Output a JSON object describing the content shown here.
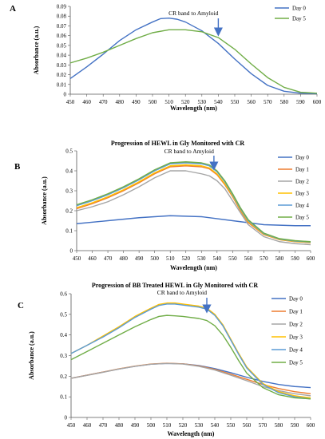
{
  "chart_data": [
    {
      "type": "line",
      "panel_label": "A",
      "title": "",
      "annotation": "CR band to Amyloid",
      "annotation_x": 540,
      "xlabel": "Wavelength (nm)",
      "ylabel": "Absorbance (a.u.)",
      "xlim": [
        450,
        600
      ],
      "ylim": [
        0,
        0.09
      ],
      "x_ticks": [
        450,
        460,
        470,
        480,
        490,
        500,
        510,
        520,
        530,
        540,
        550,
        560,
        570,
        580,
        590,
        600
      ],
      "y_ticks": [
        0,
        0.01,
        0.02,
        0.03,
        0.04,
        0.05,
        0.06,
        0.07,
        0.08,
        0.09
      ],
      "y_tick_labels": [
        "0",
        "0.01",
        "0.02",
        "0.03",
        "0.04",
        "0.05",
        "0.06",
        "0.07",
        "0.08",
        "0.09"
      ],
      "grid": false,
      "legend": "right",
      "series": [
        {
          "name": "Day 0",
          "color": "#4472c4",
          "x": [
            450,
            460,
            470,
            480,
            490,
            500,
            505,
            510,
            515,
            520,
            530,
            540,
            550,
            560,
            570,
            580,
            590,
            600
          ],
          "y": [
            0.016,
            0.028,
            0.041,
            0.055,
            0.066,
            0.074,
            0.0775,
            0.078,
            0.0768,
            0.074,
            0.065,
            0.052,
            0.036,
            0.021,
            0.009,
            0.003,
            0.001,
            0.0005
          ]
        },
        {
          "name": "Day 5",
          "color": "#70ad47",
          "x": [
            450,
            460,
            470,
            480,
            490,
            500,
            510,
            520,
            530,
            540,
            550,
            560,
            570,
            580,
            590,
            600
          ],
          "y": [
            0.032,
            0.037,
            0.043,
            0.05,
            0.057,
            0.063,
            0.066,
            0.066,
            0.064,
            0.058,
            0.046,
            0.031,
            0.017,
            0.007,
            0.002,
            0.001
          ]
        }
      ]
    },
    {
      "type": "line",
      "panel_label": "B",
      "title": "Progression of HEWL in Gly Monitored with CR",
      "annotation": "CR band to Amyloid",
      "annotation_x": 538,
      "xlabel": "Wavelength (nm)",
      "ylabel": "Absorbance (a.u.)",
      "xlim": [
        450,
        600
      ],
      "ylim": [
        0,
        0.5
      ],
      "x_ticks": [
        450,
        460,
        470,
        480,
        490,
        500,
        510,
        520,
        530,
        540,
        550,
        560,
        570,
        580,
        590,
        600
      ],
      "y_ticks": [
        0,
        0.1,
        0.2,
        0.3,
        0.4,
        0.5
      ],
      "y_tick_labels": [
        "0",
        "0.1",
        "0.2",
        "0.3",
        "0.4",
        "0.5"
      ],
      "grid": false,
      "legend": "right",
      "series": [
        {
          "name": "Day 0",
          "color": "#4472c4",
          "x": [
            450,
            470,
            490,
            510,
            530,
            550,
            570,
            590,
            600
          ],
          "y": [
            0.135,
            0.15,
            0.165,
            0.175,
            0.17,
            0.15,
            0.13,
            0.125,
            0.125
          ]
        },
        {
          "name": "Day 1",
          "color": "#ed7d31",
          "x": [
            450,
            460,
            470,
            480,
            490,
            500,
            510,
            520,
            530,
            535,
            540,
            545,
            550,
            555,
            560,
            570,
            580,
            590,
            600
          ],
          "y": [
            0.21,
            0.235,
            0.265,
            0.3,
            0.34,
            0.385,
            0.42,
            0.425,
            0.42,
            0.41,
            0.38,
            0.33,
            0.27,
            0.2,
            0.14,
            0.08,
            0.055,
            0.045,
            0.04
          ]
        },
        {
          "name": "Day 2",
          "color": "#a5a5a5",
          "x": [
            450,
            460,
            470,
            480,
            490,
            500,
            510,
            520,
            530,
            535,
            540,
            545,
            550,
            555,
            560,
            570,
            580,
            590,
            600
          ],
          "y": [
            0.2,
            0.22,
            0.245,
            0.28,
            0.32,
            0.365,
            0.4,
            0.4,
            0.385,
            0.375,
            0.35,
            0.31,
            0.25,
            0.19,
            0.13,
            0.07,
            0.045,
            0.035,
            0.03
          ]
        },
        {
          "name": "Day 3",
          "color": "#ffc000",
          "x": [
            450,
            460,
            470,
            480,
            490,
            500,
            510,
            520,
            530,
            535,
            540,
            545,
            550,
            555,
            560,
            570,
            580,
            590,
            600
          ],
          "y": [
            0.215,
            0.24,
            0.27,
            0.305,
            0.345,
            0.39,
            0.425,
            0.43,
            0.425,
            0.415,
            0.385,
            0.335,
            0.275,
            0.205,
            0.145,
            0.082,
            0.056,
            0.046,
            0.041
          ]
        },
        {
          "name": "Day 4",
          "color": "#5b9bd5",
          "x": [
            450,
            460,
            470,
            480,
            490,
            500,
            510,
            520,
            530,
            535,
            540,
            545,
            550,
            555,
            560,
            570,
            580,
            590,
            600
          ],
          "y": [
            0.225,
            0.25,
            0.28,
            0.315,
            0.355,
            0.4,
            0.435,
            0.44,
            0.435,
            0.425,
            0.395,
            0.345,
            0.28,
            0.21,
            0.15,
            0.085,
            0.058,
            0.048,
            0.043
          ]
        },
        {
          "name": "Day 5",
          "color": "#70ad47",
          "x": [
            450,
            460,
            470,
            480,
            490,
            500,
            510,
            520,
            530,
            535,
            540,
            545,
            550,
            555,
            560,
            570,
            580,
            590,
            600
          ],
          "y": [
            0.23,
            0.255,
            0.285,
            0.32,
            0.36,
            0.405,
            0.44,
            0.445,
            0.44,
            0.43,
            0.4,
            0.35,
            0.285,
            0.215,
            0.155,
            0.088,
            0.06,
            0.05,
            0.045
          ]
        }
      ]
    },
    {
      "type": "line",
      "panel_label": "C",
      "title": "Progression of BB Treated HEWL in Gly Monitored with CR",
      "annotation": "CR band to Amyloid",
      "annotation_x": 535,
      "xlabel": "Wavelength (nm)",
      "ylabel": "Absorbance (a.u.)",
      "xlim": [
        450,
        600
      ],
      "ylim": [
        0,
        0.6
      ],
      "x_ticks": [
        450,
        460,
        470,
        480,
        490,
        500,
        510,
        520,
        530,
        540,
        550,
        560,
        570,
        580,
        590,
        600
      ],
      "y_ticks": [
        0,
        0.1,
        0.2,
        0.3,
        0.4,
        0.5,
        0.6
      ],
      "y_tick_labels": [
        "0",
        "0.1",
        "0.2",
        "0.3",
        "0.4",
        "0.5",
        "0.6"
      ],
      "grid": false,
      "legend": "right",
      "series": [
        {
          "name": "Day 0",
          "color": "#4472c4",
          "x": [
            450,
            460,
            470,
            480,
            490,
            500,
            510,
            520,
            530,
            540,
            550,
            560,
            570,
            580,
            590,
            600
          ],
          "y": [
            0.19,
            0.205,
            0.22,
            0.235,
            0.248,
            0.258,
            0.262,
            0.26,
            0.252,
            0.237,
            0.217,
            0.195,
            0.175,
            0.16,
            0.15,
            0.145
          ]
        },
        {
          "name": "Day 1",
          "color": "#ed7d31",
          "x": [
            450,
            460,
            470,
            480,
            490,
            500,
            510,
            520,
            530,
            540,
            550,
            560,
            570,
            580,
            590,
            600
          ],
          "y": [
            0.19,
            0.205,
            0.22,
            0.236,
            0.249,
            0.259,
            0.263,
            0.26,
            0.25,
            0.233,
            0.21,
            0.185,
            0.16,
            0.14,
            0.125,
            0.115
          ]
        },
        {
          "name": "Day 2",
          "color": "#a5a5a5",
          "x": [
            450,
            460,
            470,
            480,
            490,
            500,
            510,
            520,
            530,
            540,
            550,
            560,
            570,
            580,
            590,
            600
          ],
          "y": [
            0.19,
            0.204,
            0.219,
            0.235,
            0.248,
            0.258,
            0.262,
            0.259,
            0.248,
            0.23,
            0.205,
            0.178,
            0.15,
            0.13,
            0.115,
            0.105
          ]
        },
        {
          "name": "Day 3",
          "color": "#ffc000",
          "x": [
            450,
            460,
            470,
            480,
            490,
            500,
            505,
            510,
            515,
            520,
            530,
            535,
            540,
            545,
            550,
            555,
            560,
            570,
            580,
            590,
            600
          ],
          "y": [
            0.31,
            0.35,
            0.395,
            0.44,
            0.49,
            0.53,
            0.548,
            0.555,
            0.555,
            0.55,
            0.54,
            0.53,
            0.5,
            0.45,
            0.38,
            0.31,
            0.245,
            0.165,
            0.125,
            0.105,
            0.095
          ]
        },
        {
          "name": "Day 4",
          "color": "#5b9bd5",
          "x": [
            450,
            460,
            470,
            480,
            490,
            500,
            505,
            510,
            515,
            520,
            530,
            535,
            540,
            545,
            550,
            555,
            560,
            570,
            580,
            590,
            600
          ],
          "y": [
            0.31,
            0.35,
            0.39,
            0.435,
            0.485,
            0.525,
            0.543,
            0.55,
            0.55,
            0.545,
            0.535,
            0.525,
            0.495,
            0.445,
            0.375,
            0.305,
            0.24,
            0.16,
            0.12,
            0.1,
            0.09
          ]
        },
        {
          "name": "Day 5",
          "color": "#70ad47",
          "x": [
            450,
            460,
            470,
            480,
            490,
            500,
            505,
            510,
            515,
            520,
            530,
            535,
            540,
            545,
            550,
            555,
            560,
            570,
            580,
            590,
            600
          ],
          "y": [
            0.28,
            0.32,
            0.36,
            0.4,
            0.44,
            0.475,
            0.49,
            0.495,
            0.493,
            0.49,
            0.48,
            0.47,
            0.445,
            0.4,
            0.34,
            0.275,
            0.215,
            0.145,
            0.11,
            0.095,
            0.09
          ]
        }
      ]
    }
  ]
}
